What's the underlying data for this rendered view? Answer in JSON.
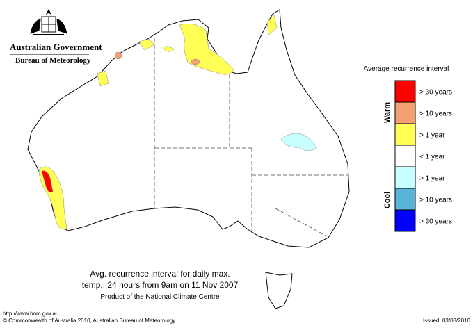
{
  "header": {
    "title": "Australian Government",
    "subtitle": "Bureau of Meteorology"
  },
  "legend": {
    "title": "Average recurrence interval",
    "warm": "Warm",
    "cool": "Cool",
    "items": [
      {
        "label": "> 30 years",
        "color": "#ff0000"
      },
      {
        "label": "> 10 years",
        "color": "#f4a070"
      },
      {
        "label": "> 1 year",
        "color": "#ffff55"
      },
      {
        "label": "< 1 year",
        "color": "#ffffff"
      },
      {
        "label": "> 1 year",
        "color": "#c8ffff"
      },
      {
        "label": "> 10 years",
        "color": "#5ab4d8"
      },
      {
        "label": "> 30 years",
        "color": "#0000ff"
      }
    ]
  },
  "caption": {
    "lines": [
      "Avg. recurrence interval for daily max.",
      "temp.: 24 hours from 9am on 11 Nov 2007",
      "Product of the National Climate Centre"
    ]
  },
  "footer": {
    "url": "http://www.bom.gov.au",
    "copyright": "© Commonwealth of Australia 2010, Australian Bureau of Meteorology",
    "issued": "Issued: 03/08/2010"
  }
}
